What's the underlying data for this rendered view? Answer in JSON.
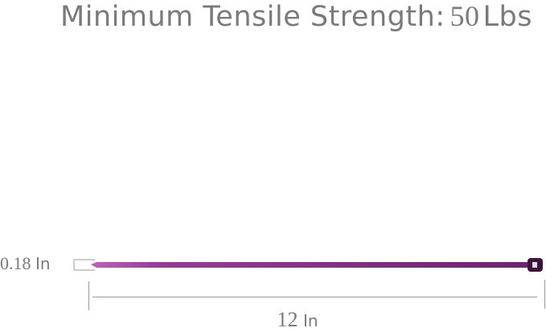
{
  "title": {
    "label": "Minimum Tensile Strength:",
    "value": "50",
    "unit": "Lbs"
  },
  "dimensions": {
    "thickness": {
      "value": "0.18",
      "unit": "In"
    },
    "length": {
      "value": "12",
      "unit": "In"
    }
  },
  "product": {
    "icon": "cable-tie-image",
    "color": "#7a2a7e"
  }
}
